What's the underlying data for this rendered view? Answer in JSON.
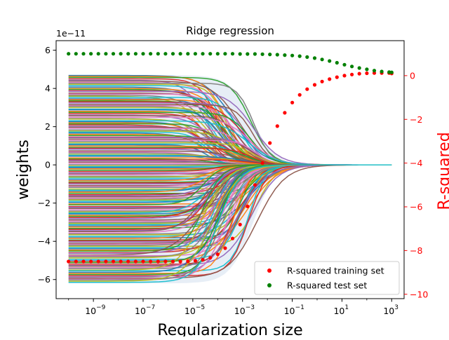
{
  "chart_data": {
    "type": "line",
    "title": "Ridge regression",
    "xlabel": "Regularization size",
    "ylabel_left": "weights",
    "ylabel_right": "R-squared",
    "x_scale": "log",
    "xlim_log10": [
      -10.5,
      3.5
    ],
    "ylim_left": [
      -7.0,
      6.5
    ],
    "ylim_right": [
      -10.2,
      1.6
    ],
    "left_offset_text": "1e−11",
    "x_ticks": [
      {
        "value_log10": -9,
        "label": "10",
        "exp": "−9"
      },
      {
        "value_log10": -7,
        "label": "10",
        "exp": "−7"
      },
      {
        "value_log10": -5,
        "label": "10",
        "exp": "−5"
      },
      {
        "value_log10": -3,
        "label": "10",
        "exp": "−3"
      },
      {
        "value_log10": -1,
        "label": "10",
        "exp": "−1"
      },
      {
        "value_log10": 1,
        "label": "10",
        "exp": "1"
      },
      {
        "value_log10": 3,
        "label": "10",
        "exp": "3"
      }
    ],
    "y_ticks_left": [
      {
        "value": 6,
        "label": "6"
      },
      {
        "value": 4,
        "label": "4"
      },
      {
        "value": 2,
        "label": "2"
      },
      {
        "value": 0,
        "label": "0"
      },
      {
        "value": -2,
        "label": "−2"
      },
      {
        "value": -4,
        "label": "−4"
      },
      {
        "value": -6,
        "label": "−6"
      }
    ],
    "y_ticks_right": [
      {
        "value": 0,
        "label": "0"
      },
      {
        "value": -2,
        "label": "−2"
      },
      {
        "value": -4,
        "label": "−4"
      },
      {
        "value": -6,
        "label": "−6"
      },
      {
        "value": -8,
        "label": "−8"
      },
      {
        "value": -10,
        "label": "−10"
      }
    ],
    "legend_position": "lower-right",
    "series": [
      {
        "name": "R-squared training set",
        "color": "#ff0000",
        "marker": "dot",
        "x_log10": [
          -10.0,
          -9.7,
          -9.4,
          -9.1,
          -8.8,
          -8.5,
          -8.2,
          -7.9,
          -7.6,
          -7.3,
          -7.0,
          -6.7,
          -6.4,
          -6.1,
          -5.8,
          -5.5,
          -5.2,
          -4.9,
          -4.6,
          -4.3,
          -4.0,
          -3.7,
          -3.4,
          -3.1,
          -2.8,
          -2.5,
          -2.2,
          -1.9,
          -1.6,
          -1.3,
          -1.0,
          -0.7,
          -0.4,
          -0.1,
          0.2,
          0.5,
          0.8,
          1.1,
          1.4,
          1.7,
          2.0,
          2.3,
          2.6,
          2.9,
          3.0
        ],
        "values": [
          -8.5,
          -8.5,
          -8.5,
          -8.5,
          -8.5,
          -8.5,
          -8.5,
          -8.5,
          -8.5,
          -8.5,
          -8.5,
          -8.5,
          -8.5,
          -8.5,
          -8.5,
          -8.5,
          -8.49,
          -8.47,
          -8.42,
          -8.33,
          -8.17,
          -7.89,
          -7.45,
          -6.81,
          -5.98,
          -5.0,
          -4.0,
          -3.08,
          -2.31,
          -1.7,
          -1.23,
          -0.88,
          -0.62,
          -0.42,
          -0.27,
          -0.16,
          -0.07,
          0.0,
          0.05,
          0.09,
          0.11,
          0.12,
          0.12,
          0.12,
          0.1
        ]
      },
      {
        "name": "R-squared test set",
        "color": "#008000",
        "marker": "dot",
        "x_log10": [
          -10.0,
          -9.7,
          -9.4,
          -9.1,
          -8.8,
          -8.5,
          -8.2,
          -7.9,
          -7.6,
          -7.3,
          -7.0,
          -6.7,
          -6.4,
          -6.1,
          -5.8,
          -5.5,
          -5.2,
          -4.9,
          -4.6,
          -4.3,
          -4.0,
          -3.7,
          -3.4,
          -3.1,
          -2.8,
          -2.5,
          -2.2,
          -1.9,
          -1.6,
          -1.3,
          -1.0,
          -0.7,
          -0.4,
          -0.1,
          0.2,
          0.5,
          0.8,
          1.1,
          1.4,
          1.7,
          2.0,
          2.3,
          2.6,
          2.9,
          3.0
        ],
        "values": [
          1.0,
          1.0,
          1.0,
          1.0,
          1.0,
          1.0,
          1.0,
          1.0,
          1.0,
          1.0,
          1.0,
          1.0,
          1.0,
          1.0,
          1.0,
          1.0,
          1.0,
          1.0,
          1.0,
          1.0,
          1.0,
          1.0,
          1.0,
          0.99,
          0.99,
          0.99,
          0.98,
          0.97,
          0.96,
          0.94,
          0.92,
          0.89,
          0.85,
          0.8,
          0.74,
          0.67,
          0.59,
          0.5,
          0.42,
          0.35,
          0.29,
          0.23,
          0.19,
          0.16,
          0.15
        ]
      }
    ]
  }
}
